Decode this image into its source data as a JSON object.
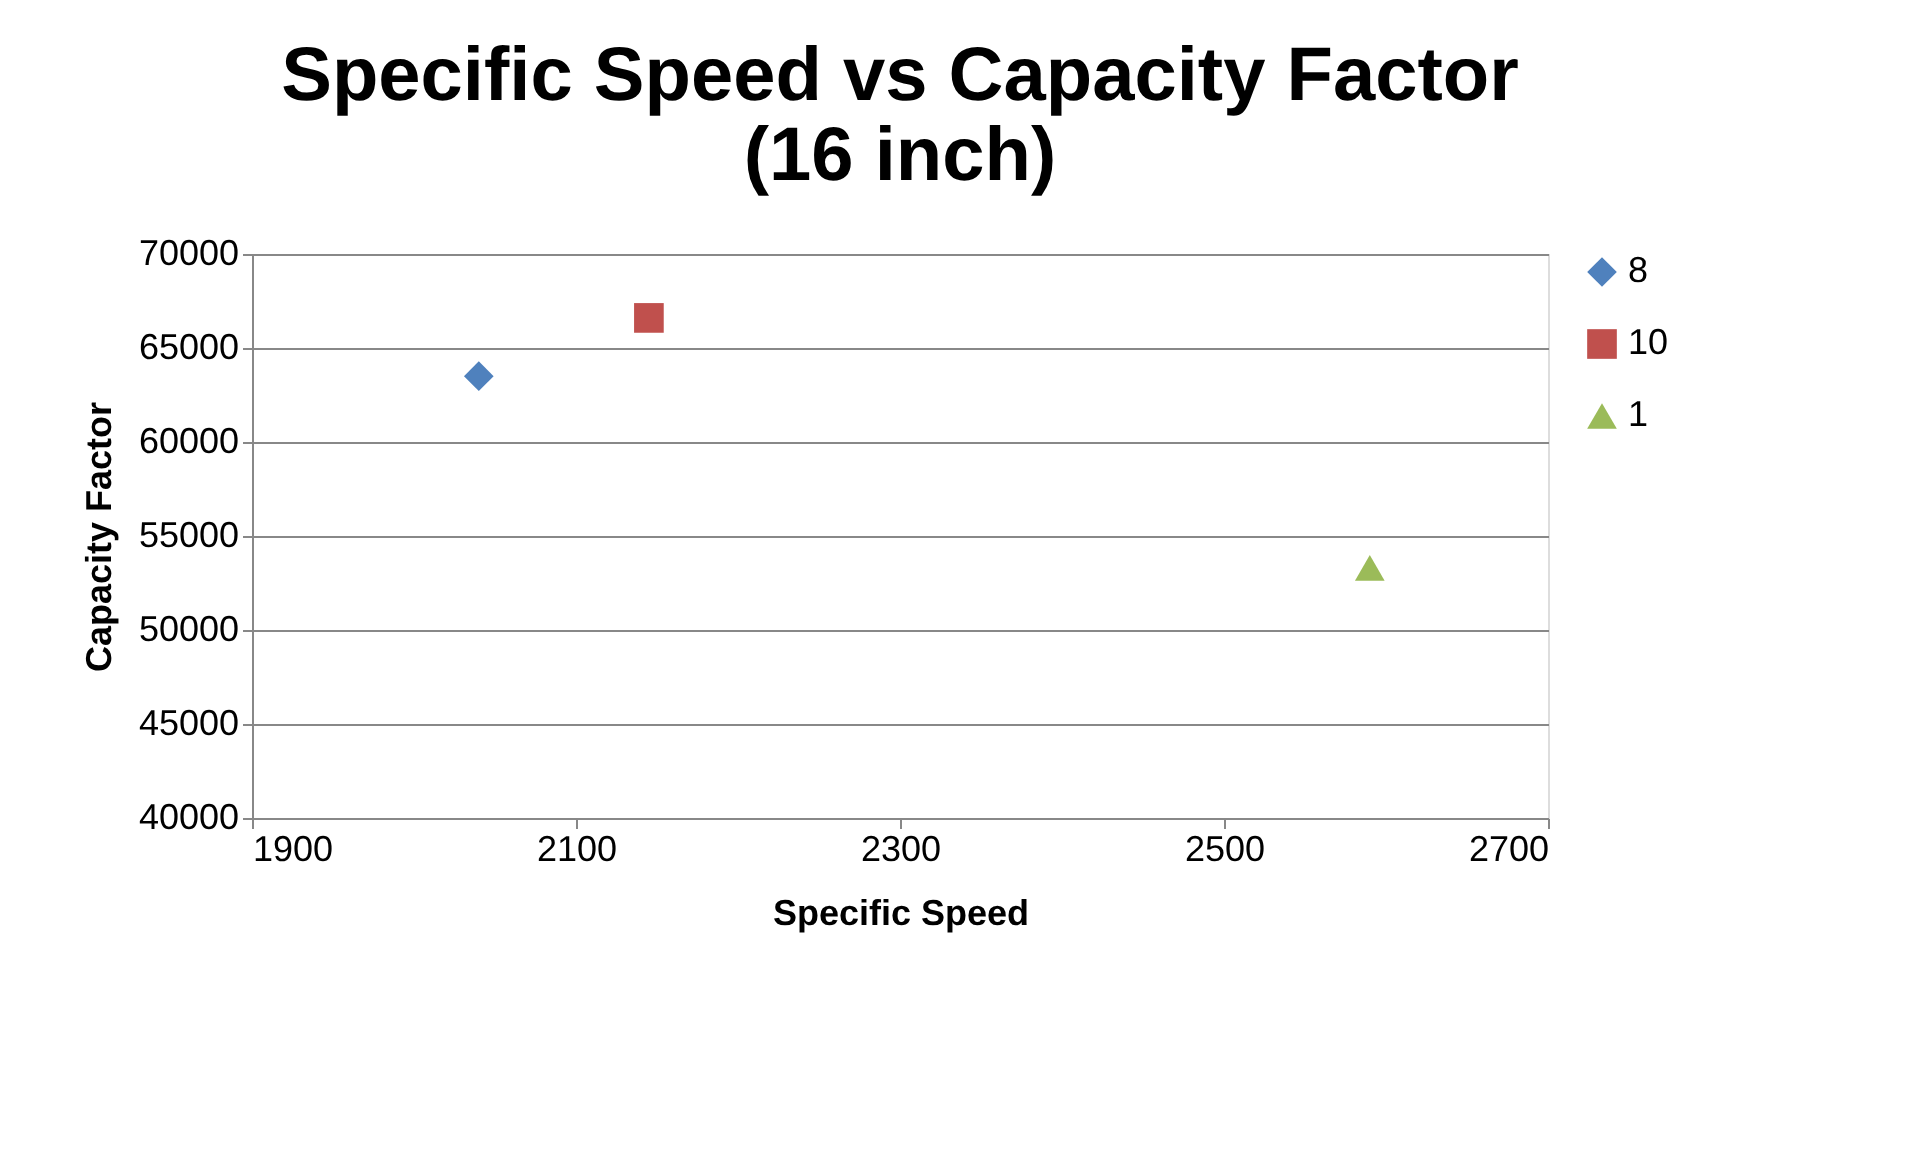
{
  "chart_data": {
    "type": "scatter",
    "title": "Specific Speed vs Capacity Factor (16 inch)",
    "xlabel": "Specific Speed",
    "ylabel": "Capacity Factor",
    "series": [
      {
        "name": "8",
        "color": "#4f81bd",
        "marker": "diamond",
        "x": [
          2040
        ],
        "values": [
          63500
        ]
      },
      {
        "name": "10",
        "color": "#c0504d",
        "marker": "square",
        "x": [
          2145
        ],
        "values": [
          66600
        ]
      },
      {
        "name": "1",
        "color": "#9bbb59",
        "marker": "triangle",
        "x": [
          2590
        ],
        "values": [
          53300
        ]
      }
    ],
    "xlim": [
      1900,
      2700
    ],
    "xticks": [
      1900,
      2100,
      2300,
      2500,
      2700
    ],
    "ylim": [
      40000,
      70000
    ],
    "yticks": [
      40000,
      45000,
      50000,
      55000,
      60000,
      65000,
      70000
    ],
    "grid": "y",
    "legend": "right"
  }
}
